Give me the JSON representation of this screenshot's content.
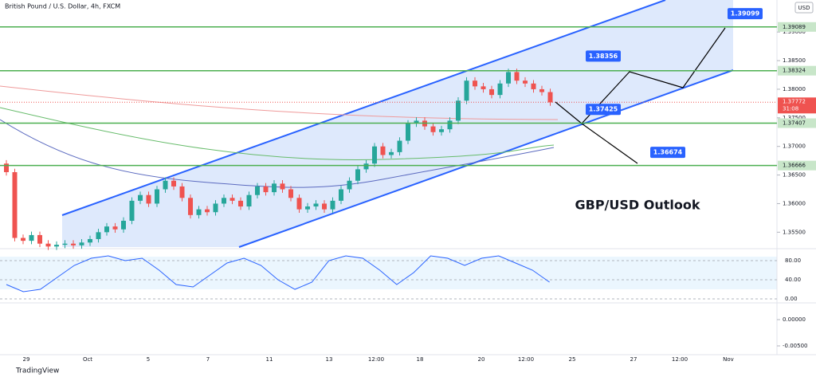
{
  "chart_data": {
    "type": "candlestick",
    "title": "British Pound / U.S. Dollar, 4h, FXCM",
    "annotation": "GBP/USD Outlook",
    "currency": "USD",
    "brand": "TradingView",
    "up_color": "#26a69a",
    "down_color": "#ef5350",
    "ylim": [
      1.3524,
      1.3956
    ],
    "yticks": [
      {
        "value": 1.355,
        "label": "1.35500"
      },
      {
        "value": 1.36,
        "label": "1.36000"
      },
      {
        "value": 1.365,
        "label": "1.36500"
      },
      {
        "value": 1.37,
        "label": "1.37000"
      },
      {
        "value": 1.375,
        "label": "1.37500"
      },
      {
        "value": 1.38,
        "label": "1.38000"
      },
      {
        "value": 1.385,
        "label": "1.38500"
      },
      {
        "value": 1.39,
        "label": "1.39000"
      }
    ],
    "x_labels": [
      "29",
      "Oct",
      "5",
      "7",
      "11",
      "13",
      "12:00",
      "18",
      "20",
      "12:00",
      "25",
      "27",
      "12:00",
      "Nov"
    ],
    "open": [
      1.367,
      1.3655,
      1.354,
      1.3535,
      1.3545,
      1.353,
      1.3525,
      1.3528,
      1.353,
      1.3527,
      1.3532,
      1.3538,
      1.355,
      1.356,
      1.3555,
      1.357,
      1.3605,
      1.3615,
      1.36,
      1.3625,
      1.364,
      1.363,
      1.361,
      1.358,
      1.359,
      1.3585,
      1.36,
      1.361,
      1.3605,
      1.3595,
      1.3615,
      1.363,
      1.362,
      1.3635,
      1.3625,
      1.361,
      1.359,
      1.3595,
      1.36,
      1.359,
      1.3605,
      1.3625,
      1.364,
      1.366,
      1.367,
      1.37,
      1.3685,
      1.369,
      1.371,
      1.374,
      1.3745,
      1.3735,
      1.3725,
      1.373,
      1.3745,
      1.378,
      1.3815,
      1.3805,
      1.38,
      1.379,
      1.381,
      1.383,
      1.3815,
      1.381,
      1.38,
      1.3795
    ],
    "high": [
      1.3676,
      1.3661,
      1.3546,
      1.3551,
      1.3551,
      1.3536,
      1.3534,
      1.3536,
      1.3536,
      1.3538,
      1.3544,
      1.3556,
      1.3566,
      1.3566,
      1.3576,
      1.3611,
      1.3621,
      1.3621,
      1.3631,
      1.3646,
      1.3646,
      1.3636,
      1.3616,
      1.3596,
      1.3596,
      1.3606,
      1.3616,
      1.3616,
      1.3611,
      1.3621,
      1.3636,
      1.3636,
      1.3641,
      1.3641,
      1.3631,
      1.3616,
      1.3601,
      1.3606,
      1.3606,
      1.3611,
      1.3631,
      1.3646,
      1.3666,
      1.3676,
      1.3706,
      1.3706,
      1.3696,
      1.3716,
      1.3746,
      1.3751,
      1.3751,
      1.3741,
      1.3736,
      1.3751,
      1.3786,
      1.3821,
      1.3821,
      1.3811,
      1.3806,
      1.3816,
      1.3836,
      1.3836,
      1.3821,
      1.3816,
      1.3806,
      1.3801
    ],
    "low": [
      1.3649,
      1.3534,
      1.3529,
      1.3529,
      1.3524,
      1.3519,
      1.3519,
      1.3522,
      1.3521,
      1.3521,
      1.3526,
      1.3532,
      1.3544,
      1.3549,
      1.3549,
      1.3564,
      1.3599,
      1.3594,
      1.3594,
      1.3619,
      1.3624,
      1.3604,
      1.3574,
      1.3574,
      1.3579,
      1.3579,
      1.3594,
      1.3599,
      1.3589,
      1.3589,
      1.3609,
      1.3614,
      1.3614,
      1.3619,
      1.3604,
      1.3584,
      1.3584,
      1.3589,
      1.3584,
      1.3584,
      1.3599,
      1.3619,
      1.3634,
      1.3654,
      1.3664,
      1.3679,
      1.3679,
      1.3684,
      1.3704,
      1.3734,
      1.3729,
      1.3719,
      1.3719,
      1.3724,
      1.3739,
      1.3774,
      1.3799,
      1.3794,
      1.3784,
      1.3784,
      1.3804,
      1.3809,
      1.3804,
      1.3794,
      1.3789,
      1.3771
    ],
    "close": [
      1.3655,
      1.354,
      1.3535,
      1.3545,
      1.353,
      1.3525,
      1.3528,
      1.353,
      1.3527,
      1.3532,
      1.3538,
      1.355,
      1.356,
      1.3555,
      1.357,
      1.3605,
      1.3615,
      1.36,
      1.3625,
      1.364,
      1.363,
      1.361,
      1.358,
      1.359,
      1.3585,
      1.36,
      1.361,
      1.3605,
      1.3595,
      1.3615,
      1.363,
      1.362,
      1.3635,
      1.3625,
      1.361,
      1.359,
      1.3595,
      1.36,
      1.359,
      1.3605,
      1.3625,
      1.364,
      1.366,
      1.367,
      1.37,
      1.3685,
      1.369,
      1.371,
      1.374,
      1.3745,
      1.3735,
      1.3725,
      1.373,
      1.3745,
      1.378,
      1.3815,
      1.3805,
      1.38,
      1.379,
      1.381,
      1.383,
      1.3815,
      1.381,
      1.38,
      1.3795,
      1.3777
    ],
    "levels": [
      1.39089,
      1.38324,
      1.37407,
      1.36666
    ],
    "targets": [
      1.39099,
      1.38356,
      1.37425,
      1.36674
    ],
    "last_price": 1.37772,
    "countdown": "31:08"
  },
  "oscillator": {
    "ylim": [
      -8.3,
      100
    ],
    "yticks": [
      {
        "value": 80,
        "label": "80.00"
      },
      {
        "value": 40,
        "label": "40.00"
      },
      {
        "value": 0,
        "label": "0.00"
      }
    ],
    "values": [
      30,
      15,
      20,
      45,
      70,
      85,
      90,
      80,
      85,
      60,
      30,
      25,
      50,
      75,
      85,
      70,
      40,
      20,
      35,
      80,
      90,
      85,
      60,
      30,
      55,
      90,
      85,
      70,
      85,
      90,
      75,
      60,
      35
    ]
  },
  "macd": {
    "ylim": [
      -0.00667,
      0.00288
    ],
    "yticks": [
      {
        "value": 0,
        "label": "0.00000"
      },
      {
        "value": -0.005,
        "label": "-0.00500"
      }
    ]
  }
}
